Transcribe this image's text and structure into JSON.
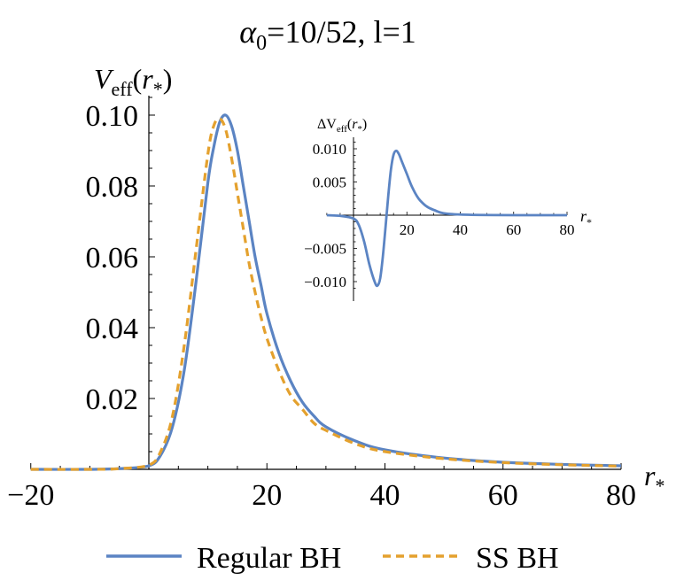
{
  "colors": {
    "regular": "#5b84c3",
    "ss": "#e4a12e",
    "axis": "#000000"
  },
  "chart_data": [
    {
      "type": "line",
      "title": "α₀=10/52, l=1",
      "ylabel": "Veff(r*)",
      "xlabel": "r*",
      "xlim": [
        -20,
        80
      ],
      "ylim": [
        0,
        0.105
      ],
      "xticks": [
        -20,
        20,
        40,
        60,
        80
      ],
      "xtick_labels": [
        "−20",
        "20",
        "40",
        "60",
        "80"
      ],
      "yticks": [
        0.02,
        0.04,
        0.06,
        0.08,
        0.1
      ],
      "ytick_labels": [
        "0.02",
        "0.04",
        "0.06",
        "0.08",
        "0.10"
      ],
      "grid": false,
      "legend": "bottom",
      "series": [
        {
          "name": "Regular BH",
          "style": "solid",
          "color": "#5b84c3",
          "x": [
            -20,
            -10,
            -5,
            0,
            2,
            4,
            6,
            8,
            10,
            11,
            12,
            13,
            14,
            15,
            16,
            17,
            18,
            19,
            20,
            22,
            24,
            26,
            28,
            30,
            35,
            40,
            50,
            60,
            70,
            80
          ],
          "y": [
            0.0,
            0.0,
            0.0002,
            0.001,
            0.004,
            0.012,
            0.028,
            0.053,
            0.081,
            0.091,
            0.098,
            0.1,
            0.097,
            0.09,
            0.08,
            0.07,
            0.06,
            0.052,
            0.044,
            0.033,
            0.025,
            0.019,
            0.015,
            0.012,
            0.008,
            0.0055,
            0.0032,
            0.002,
            0.0014,
            0.001
          ]
        },
        {
          "name": "SS BH",
          "style": "dashed",
          "color": "#e4a12e",
          "x": [
            -20,
            -10,
            -5,
            0,
            2,
            4,
            6,
            8,
            10,
            11,
            12,
            13,
            14,
            15,
            16,
            17,
            18,
            19,
            20,
            22,
            24,
            26,
            28,
            30,
            35,
            40,
            50,
            60,
            70,
            80
          ],
          "y": [
            0.0,
            0.0,
            0.0002,
            0.0012,
            0.005,
            0.015,
            0.035,
            0.062,
            0.089,
            0.097,
            0.099,
            0.096,
            0.088,
            0.078,
            0.068,
            0.058,
            0.05,
            0.043,
            0.037,
            0.028,
            0.021,
            0.017,
            0.013,
            0.011,
            0.0072,
            0.005,
            0.003,
            0.0019,
            0.0013,
            0.0009
          ]
        }
      ]
    },
    {
      "type": "line",
      "title": "",
      "ylabel": "ΔVeff(r*)",
      "xlabel": "r*",
      "xlim": [
        -10,
        80
      ],
      "ylim": [
        -0.012,
        0.012
      ],
      "xticks": [
        20,
        40,
        60,
        80
      ],
      "xtick_labels": [
        "20",
        "40",
        "60",
        "80"
      ],
      "yticks": [
        -0.01,
        -0.005,
        0.005,
        0.01
      ],
      "ytick_labels": [
        "−0.010",
        "−0.005",
        "0.005",
        "0.010"
      ],
      "grid": false,
      "series": [
        {
          "color": "#5b84c3",
          "style": "solid",
          "x": [
            -10,
            -5,
            0,
            2,
            4,
            6,
            8,
            9,
            10,
            11,
            12,
            13,
            14,
            15,
            16,
            17,
            18,
            20,
            22,
            25,
            30,
            40,
            80
          ],
          "y": [
            0.0,
            -0.0001,
            -0.0005,
            -0.0015,
            -0.004,
            -0.0075,
            -0.0101,
            -0.0106,
            -0.0095,
            -0.0062,
            -0.0018,
            0.0028,
            0.0068,
            0.0091,
            0.0097,
            0.0092,
            0.0082,
            0.0062,
            0.0042,
            0.0022,
            0.0008,
            0.0001,
            0.0
          ]
        }
      ]
    }
  ],
  "legend": {
    "items": [
      {
        "label": "Regular BH"
      },
      {
        "label": "SS BH"
      }
    ]
  }
}
